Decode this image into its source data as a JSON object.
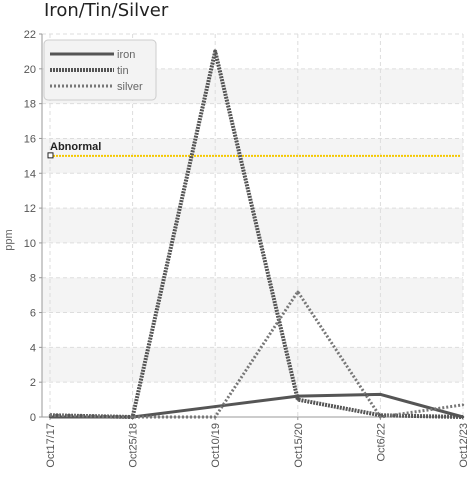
{
  "chart_data": {
    "type": "line",
    "title": "Iron/Tin/Silver",
    "xlabel": "",
    "ylabel": "ppm",
    "categories": [
      "Oct17/17",
      "Oct25/18",
      "Oct10/19",
      "Oct15/20",
      "Oct6/22",
      "Oct12/23"
    ],
    "ylim": [
      0,
      22
    ],
    "yticks": [
      0,
      2,
      4,
      6,
      8,
      10,
      12,
      14,
      16,
      18,
      20,
      22
    ],
    "grid": true,
    "legend_position": "top-left",
    "series": [
      {
        "name": "iron",
        "values": [
          0,
          0,
          0.6,
          1.2,
          1.3,
          0
        ],
        "color": "#555555",
        "style": "solid"
      },
      {
        "name": "tin",
        "values": [
          0.1,
          0,
          21,
          1.0,
          0.1,
          0
        ],
        "color": "#555555",
        "style": "dotted"
      },
      {
        "name": "silver",
        "values": [
          0.1,
          0,
          0,
          7.2,
          0,
          0.7
        ],
        "color": "#777777",
        "style": "dashed"
      }
    ],
    "annotations": [
      {
        "label": "Abnormal",
        "y": 15,
        "color": "#f5c800"
      }
    ]
  }
}
